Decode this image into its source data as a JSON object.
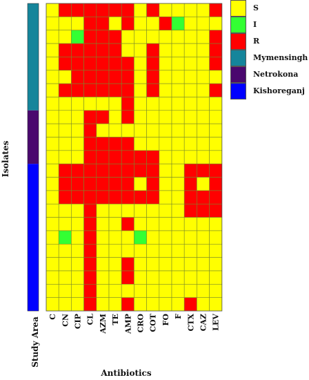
{
  "chart_data": {
    "type": "heatmap",
    "xlabel": "Antibiotics",
    "ylabel": "Isolates",
    "study_area_label": "Study Area",
    "columns": [
      "C",
      "CN",
      "CIP",
      "CL",
      "AZM",
      "TE",
      "AMP",
      "CRO",
      "COT",
      "FO",
      "F",
      "CTX",
      "CAZ",
      "LEV"
    ],
    "categories": [
      {
        "code": "S",
        "label": "S",
        "color": "#ffff00"
      },
      {
        "code": "I",
        "label": "I",
        "color": "#33ff33"
      },
      {
        "code": "R",
        "label": "R",
        "color": "#ff0000"
      }
    ],
    "study_areas": [
      {
        "name": "Mymensingh",
        "color": "#15859b",
        "rows": [
          0,
          7
        ]
      },
      {
        "name": "Netrokona",
        "color": "#4a086e",
        "rows": [
          8,
          11
        ]
      },
      {
        "name": "Kishoreganj",
        "color": "#0000ff",
        "rows": [
          12,
          22
        ]
      }
    ],
    "values": [
      [
        "S",
        "R",
        "R",
        "R",
        "R",
        "R",
        "R",
        "S",
        "R",
        "S",
        "S",
        "S",
        "S",
        "R"
      ],
      [
        "S",
        "S",
        "S",
        "R",
        "R",
        "S",
        "R",
        "S",
        "S",
        "R",
        "I",
        "S",
        "S",
        "S"
      ],
      [
        "S",
        "S",
        "I",
        "R",
        "R",
        "R",
        "S",
        "S",
        "S",
        "S",
        "S",
        "S",
        "S",
        "R"
      ],
      [
        "S",
        "R",
        "R",
        "R",
        "R",
        "R",
        "S",
        "S",
        "R",
        "S",
        "S",
        "S",
        "S",
        "R"
      ],
      [
        "S",
        "R",
        "R",
        "R",
        "R",
        "R",
        "R",
        "S",
        "R",
        "S",
        "S",
        "S",
        "S",
        "R"
      ],
      [
        "S",
        "S",
        "R",
        "R",
        "R",
        "R",
        "R",
        "S",
        "R",
        "S",
        "S",
        "S",
        "S",
        "S"
      ],
      [
        "S",
        "R",
        "R",
        "R",
        "R",
        "R",
        "R",
        "S",
        "R",
        "S",
        "S",
        "S",
        "S",
        "R"
      ],
      [
        "S",
        "S",
        "S",
        "S",
        "S",
        "S",
        "R",
        "S",
        "S",
        "S",
        "S",
        "S",
        "S",
        "S"
      ],
      [
        "S",
        "S",
        "S",
        "R",
        "R",
        "S",
        "R",
        "S",
        "S",
        "S",
        "S",
        "S",
        "S",
        "S"
      ],
      [
        "S",
        "S",
        "S",
        "R",
        "S",
        "S",
        "S",
        "S",
        "S",
        "S",
        "S",
        "S",
        "S",
        "S"
      ],
      [
        "S",
        "S",
        "S",
        "R",
        "R",
        "R",
        "R",
        "S",
        "S",
        "S",
        "S",
        "S",
        "S",
        "S"
      ],
      [
        "S",
        "S",
        "S",
        "R",
        "R",
        "R",
        "R",
        "R",
        "R",
        "S",
        "S",
        "S",
        "S",
        "S"
      ],
      [
        "S",
        "R",
        "R",
        "R",
        "R",
        "R",
        "R",
        "R",
        "R",
        "S",
        "S",
        "R",
        "R",
        "R"
      ],
      [
        "S",
        "R",
        "R",
        "R",
        "R",
        "R",
        "R",
        "S",
        "R",
        "S",
        "S",
        "R",
        "S",
        "R"
      ],
      [
        "S",
        "R",
        "R",
        "R",
        "R",
        "R",
        "R",
        "R",
        "R",
        "S",
        "S",
        "R",
        "R",
        "R"
      ],
      [
        "S",
        "S",
        "S",
        "R",
        "S",
        "S",
        "S",
        "S",
        "S",
        "S",
        "S",
        "R",
        "R",
        "R"
      ],
      [
        "S",
        "S",
        "S",
        "R",
        "S",
        "S",
        "R",
        "S",
        "S",
        "S",
        "S",
        "S",
        "S",
        "S"
      ],
      [
        "S",
        "I",
        "S",
        "R",
        "S",
        "S",
        "S",
        "I",
        "S",
        "S",
        "S",
        "S",
        "S",
        "S"
      ],
      [
        "S",
        "S",
        "S",
        "R",
        "S",
        "S",
        "S",
        "S",
        "S",
        "S",
        "S",
        "S",
        "S",
        "S"
      ],
      [
        "S",
        "S",
        "S",
        "R",
        "S",
        "S",
        "R",
        "S",
        "S",
        "S",
        "S",
        "S",
        "S",
        "S"
      ],
      [
        "S",
        "S",
        "S",
        "R",
        "S",
        "S",
        "R",
        "S",
        "S",
        "S",
        "S",
        "S",
        "S",
        "S"
      ],
      [
        "S",
        "S",
        "S",
        "R",
        "S",
        "S",
        "S",
        "S",
        "S",
        "S",
        "S",
        "S",
        "S",
        "S"
      ],
      [
        "S",
        "S",
        "S",
        "R",
        "S",
        "S",
        "R",
        "S",
        "S",
        "S",
        "S",
        "R",
        "S",
        "S"
      ]
    ]
  }
}
